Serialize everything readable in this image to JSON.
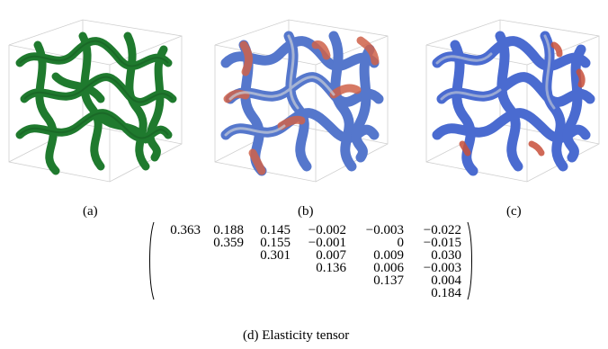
{
  "figure": {
    "panels": [
      {
        "id": "a",
        "caption": "(a)",
        "coloring": "uniform",
        "base_color": "#1f7a2e"
      },
      {
        "id": "b",
        "caption": "(b)",
        "coloring": "stress-map",
        "base_color": "#4a6fc9",
        "hot_color": "#d0624a"
      },
      {
        "id": "c",
        "caption": "(c)",
        "coloring": "stress-map",
        "base_color": "#3f63c8",
        "hot_color": "#c8503a"
      }
    ],
    "matrix": {
      "caption": "(d) Elasticity tensor",
      "rows": [
        [
          "0.363",
          "0.188",
          "0.145",
          "−0.002",
          "−0.003",
          "−0.022"
        ],
        [
          "",
          "0.359",
          "0.155",
          "−0.001",
          "0",
          "−0.015"
        ],
        [
          "",
          "",
          "0.301",
          "0.007",
          "0.009",
          "0.030"
        ],
        [
          "",
          "",
          "",
          "0.136",
          "0.006",
          "−0.003"
        ],
        [
          "",
          "",
          "",
          "",
          "0.137",
          "0.004"
        ],
        [
          "",
          "",
          "",
          "",
          "",
          "0.184"
        ]
      ]
    }
  }
}
